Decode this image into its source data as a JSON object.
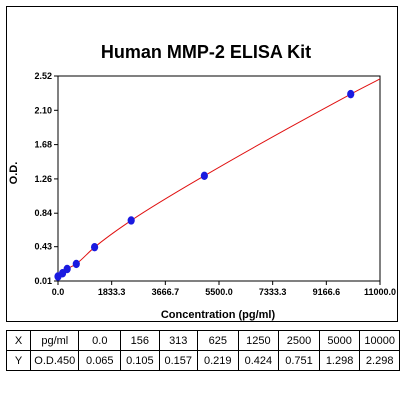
{
  "chart_data": {
    "type": "scatter",
    "title": "Human MMP-2 ELISA Kit",
    "xlabel": "Concentration (pg/ml)",
    "ylabel": "O.D.",
    "xlim": [
      0,
      11000
    ],
    "ylim": [
      0.01,
      2.52
    ],
    "x_ticks": [
      "0.0",
      "1833.3",
      "3666.7",
      "5500.0",
      "7333.3",
      "9166.6",
      "11000.0"
    ],
    "x_tick_values": [
      0,
      1833.3,
      3666.7,
      5500.0,
      7333.3,
      9166.6,
      11000.0
    ],
    "y_ticks": [
      "0.01",
      "0.43",
      "0.84",
      "1.26",
      "1.68",
      "2.10",
      "2.52"
    ],
    "y_tick_values": [
      0.01,
      0.43,
      0.84,
      1.26,
      1.68,
      2.1,
      2.52
    ],
    "grid": false,
    "series": [
      {
        "x": [
          0,
          156,
          313,
          625,
          1250,
          2500,
          5000,
          10000
        ],
        "y": [
          0.065,
          0.105,
          0.157,
          0.219,
          0.424,
          0.751,
          1.298,
          2.298
        ]
      }
    ],
    "curve_color": "#e01010",
    "point_color": "#1a1ae0"
  },
  "table": {
    "rows": [
      [
        "X",
        "pg/ml",
        "0.0",
        "156",
        "313",
        "625",
        "1250",
        "2500",
        "5000",
        "10000"
      ],
      [
        "Y",
        "O.D.450",
        "0.065",
        "0.105",
        "0.157",
        "0.219",
        "0.424",
        "0.751",
        "1.298",
        "2.298"
      ]
    ]
  }
}
